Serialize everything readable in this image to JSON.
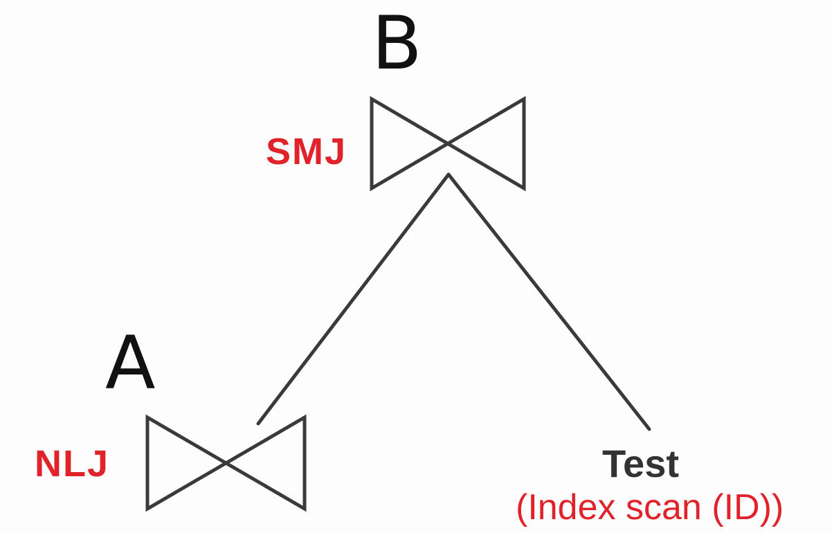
{
  "nodes": {
    "b": {
      "letter": "B",
      "operator": "SMJ"
    },
    "a": {
      "letter": "A",
      "operator": "NLJ"
    },
    "test": {
      "name": "Test",
      "access": "(Index scan (ID))"
    }
  },
  "colors": {
    "operator": "#e0232b",
    "stroke": "#3a3a3a",
    "letter": "#111111",
    "table": "#333333",
    "background": "#fdfdfd"
  }
}
